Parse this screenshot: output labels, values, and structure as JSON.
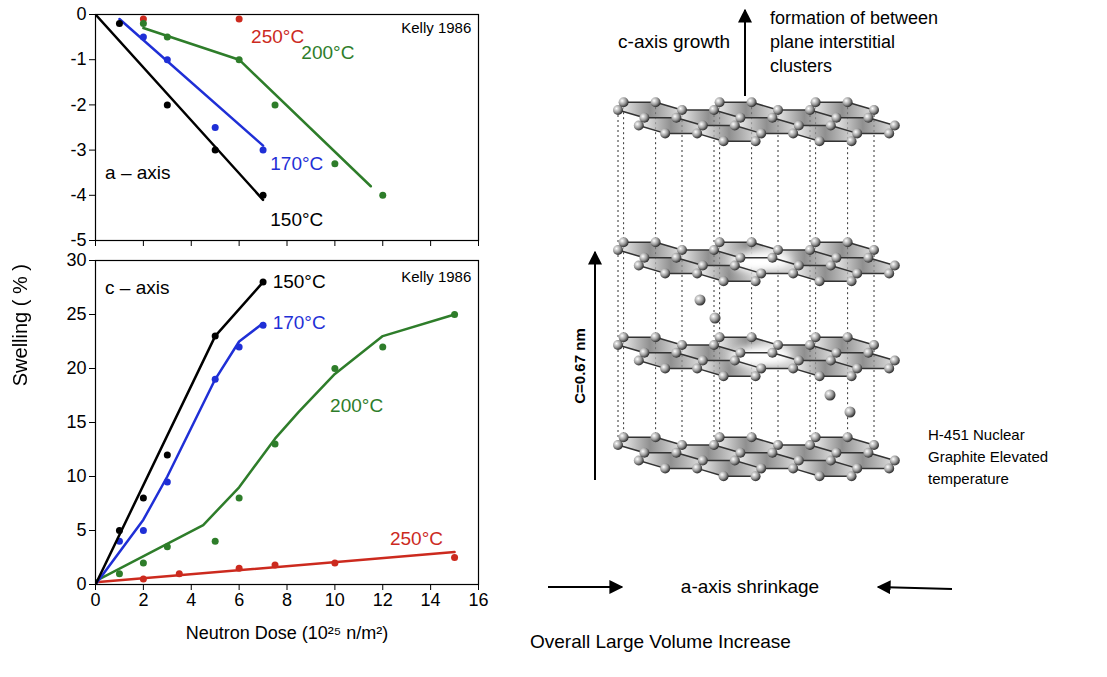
{
  "ylabel_shared": "Swelling ( % )",
  "chart_data": [
    {
      "type": "line",
      "annotations": [
        "a – axis",
        "Kelly 1986"
      ],
      "xlim": [
        0,
        16
      ],
      "xticks": [
        0,
        2,
        4,
        6,
        8,
        10,
        12,
        14,
        16
      ],
      "ylim": [
        -5,
        0
      ],
      "yticks": [
        -5,
        -4,
        -3,
        -2,
        -1,
        0
      ],
      "tick_labels": "y",
      "series": [
        {
          "name": "250°C",
          "color": "#cc2a1e",
          "marker": "circle",
          "line_style": "none",
          "x": [
            2,
            6
          ],
          "values": [
            -0.1,
            -0.1
          ]
        },
        {
          "name": "200°C",
          "color": "#2e7d2a",
          "marker": "circle",
          "line_style": "solid",
          "x": [
            2,
            3,
            6,
            7.5,
            10,
            12
          ],
          "values": [
            -0.2,
            -0.5,
            -1.0,
            -2.0,
            -3.3,
            -4.0
          ],
          "fit": {
            "x": [
              2,
              6,
              11.5
            ],
            "values": [
              -0.3,
              -1.0,
              -3.8
            ]
          }
        },
        {
          "name": "170°C",
          "color": "#1f2fd6",
          "marker": "circle",
          "line_style": "solid",
          "x": [
            2,
            3,
            5,
            7
          ],
          "values": [
            -0.5,
            -1.0,
            -2.5,
            -3.0
          ],
          "fit": {
            "x": [
              1,
              7
            ],
            "values": [
              -0.1,
              -2.9
            ]
          }
        },
        {
          "name": "150°C",
          "color": "#000000",
          "marker": "circle",
          "line_style": "solid",
          "x": [
            1,
            3,
            5,
            7
          ],
          "values": [
            -0.2,
            -2.0,
            -3.0,
            -4.0
          ],
          "fit": {
            "x": [
              0,
              7
            ],
            "values": [
              0,
              -4.1
            ]
          }
        }
      ]
    },
    {
      "type": "line",
      "annotations": [
        "c – axis",
        "Kelly 1986"
      ],
      "xlabel": "Neutron Dose (10²⁵ n/m²)",
      "xlim": [
        0,
        16
      ],
      "xticks": [
        0,
        2,
        4,
        6,
        8,
        10,
        12,
        14,
        16
      ],
      "ylim": [
        0,
        30
      ],
      "yticks": [
        0,
        5,
        10,
        15,
        20,
        25,
        30
      ],
      "series": [
        {
          "name": "250°C",
          "color": "#cc2a1e",
          "marker": "circle",
          "line_style": "solid",
          "x": [
            2,
            3.5,
            6,
            7.5,
            10,
            15
          ],
          "values": [
            0.5,
            1.0,
            1.5,
            1.8,
            2.0,
            2.5
          ],
          "fit": {
            "x": [
              0,
              15
            ],
            "values": [
              0.2,
              3.0
            ]
          }
        },
        {
          "name": "200°C",
          "color": "#2e7d2a",
          "marker": "circle",
          "line_style": "solid",
          "x": [
            1,
            2,
            3,
            5,
            6,
            7.5,
            10,
            12,
            15
          ],
          "values": [
            1,
            2,
            3.5,
            4,
            8,
            13,
            20,
            22,
            25
          ],
          "fit": {
            "x": [
              0,
              4.5,
              6,
              7.5,
              8.5,
              10,
              12,
              15
            ],
            "values": [
              0.3,
              5.5,
              9,
              13.5,
              16,
              19.5,
              23,
              25
            ]
          }
        },
        {
          "name": "170°C",
          "color": "#1f2fd6",
          "marker": "circle",
          "line_style": "solid",
          "x": [
            1,
            2,
            3,
            5,
            6,
            7
          ],
          "values": [
            4,
            5,
            9.5,
            19,
            22,
            24
          ],
          "fit": {
            "x": [
              0,
              2,
              3,
              5,
              6,
              7
            ],
            "values": [
              0,
              6,
              10,
              19,
              22.5,
              24.2
            ]
          }
        },
        {
          "name": "150°C",
          "color": "#000000",
          "marker": "circle",
          "line_style": "solid",
          "x": [
            1,
            2,
            3,
            5,
            7
          ],
          "values": [
            5,
            8,
            12,
            23,
            28
          ],
          "fit": {
            "x": [
              0,
              5,
              7
            ],
            "values": [
              0,
              23,
              28
            ]
          }
        }
      ]
    }
  ],
  "diagram": {
    "c_axis_label": "c-axis growth",
    "cluster_label": [
      "formation of between",
      "plane interstitial",
      "clusters"
    ],
    "spacing_label": "C=0.67 nm",
    "material_label": [
      "H-451 Nuclear",
      "Graphite Elevated",
      "temperature"
    ],
    "a_axis_label": "a-axis shrinkage",
    "caption": "Overall Large Volume Increase"
  }
}
